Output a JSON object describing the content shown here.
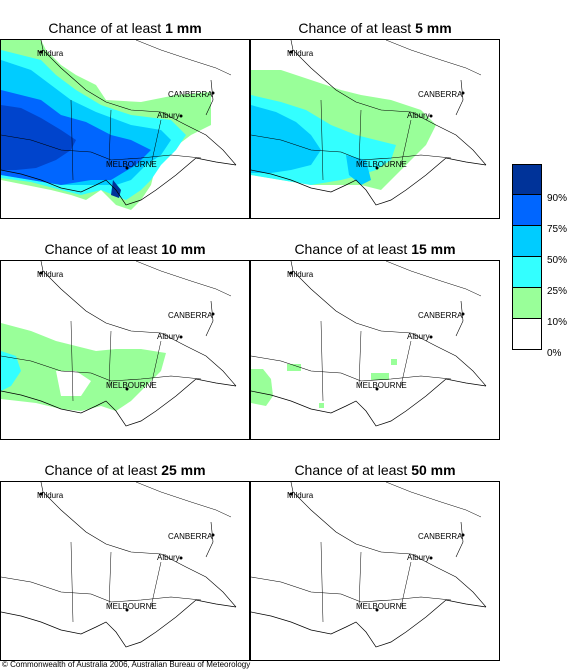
{
  "panels": [
    {
      "prefix": "Chance of at least ",
      "amount": "1 mm"
    },
    {
      "prefix": "Chance of at least ",
      "amount": "5 mm"
    },
    {
      "prefix": "Chance of at least ",
      "amount": "10 mm"
    },
    {
      "prefix": "Chance of at least ",
      "amount": "15 mm"
    },
    {
      "prefix": "Chance of at least ",
      "amount": "25 mm"
    },
    {
      "prefix": "Chance of at least ",
      "amount": "50 mm"
    }
  ],
  "places": {
    "mildura": "Mildura",
    "canberra": "CANBERRA",
    "albury": "Albury",
    "melbourne": "MELBOURNE"
  },
  "legend": {
    "labels": [
      "90%",
      "75%",
      "50%",
      "25%",
      "10%",
      "0%"
    ],
    "colors": [
      "#003399",
      "#0066ff",
      "#00ccff",
      "#33ffff",
      "#99ff99",
      "#ffffff"
    ]
  },
  "copyright": "© Commonwealth of Australia 2006, Australian Bureau of Meteorology"
}
